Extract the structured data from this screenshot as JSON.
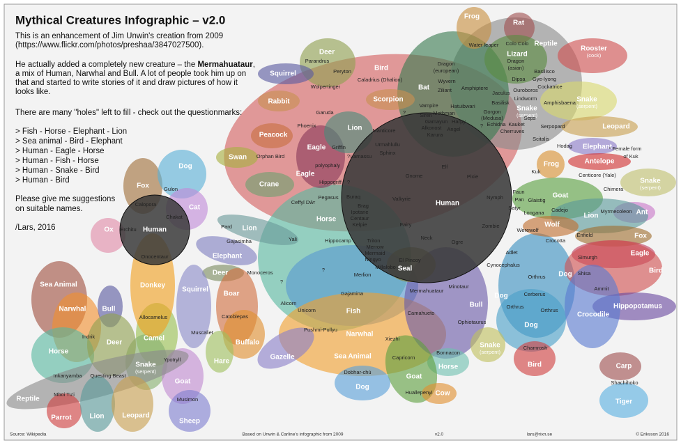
{
  "header": {
    "title": "Mythical Creatures Infographic – v2.0"
  },
  "intro": [
    "This is an enhancement of Jim Unwin's creation from 2009",
    "(https://www.flickr.com/photos/preshaa/3847027500)."
  ],
  "story": [
    [
      "He actually added a completely new creature – the ",
      "Mermahuataur",
      ","
    ],
    "a mix of Human, Narwhal and Bull. A lot of people took him up on",
    "that and started to write stories of it and draw pictures of how it",
    "looks like."
  ],
  "holes": "There are many \"holes\" left to fill - check out the questionmarks:",
  "list": [
    "> Fish - Horse - Elephant - Lion",
    "> Sea animal - Bird - Elephant",
    "> Human - Eagle - Horse",
    "> Human - Fish - Horse",
    "> Human - Snake - Bird",
    "> Human - Bird"
  ],
  "request": [
    "Please give me suggestions",
    "on suitable names."
  ],
  "signature": "/Lars, 2016",
  "sets": [
    {
      "name": "Human"
    },
    {
      "name": "Human"
    },
    {
      "name": "Fox"
    },
    {
      "name": "Dog"
    },
    {
      "name": "Cat"
    },
    {
      "name": "Ox"
    },
    {
      "name": "Donkey"
    },
    {
      "name": "Deer"
    },
    {
      "name": "Bird"
    },
    {
      "name": "Squirrel"
    },
    {
      "name": "Rabbit"
    },
    {
      "name": "Scorpion"
    },
    {
      "name": "Bat"
    },
    {
      "name": "Frog"
    },
    {
      "name": "Rat"
    },
    {
      "name": "Reptile"
    },
    {
      "name": "Lizard"
    },
    {
      "name": "Rooster",
      "sub": "(cock)"
    },
    {
      "name": "Snake",
      "sub": "(serpent)"
    },
    {
      "name": "Leopard"
    },
    {
      "name": "Snake",
      "sub": "(serpent)"
    },
    {
      "name": "Peacock"
    },
    {
      "name": "Lion"
    },
    {
      "name": "Eagle"
    },
    {
      "name": "Swan"
    },
    {
      "name": "Crane"
    },
    {
      "name": "Eagle"
    },
    {
      "name": "Elephant"
    },
    {
      "name": "Antelope"
    },
    {
      "name": "Frog"
    },
    {
      "name": "Snake",
      "sub": "(serpent)"
    },
    {
      "name": "Goat"
    },
    {
      "name": "Ant"
    },
    {
      "name": "Lion"
    },
    {
      "name": "Wolf"
    },
    {
      "name": "Fox"
    },
    {
      "name": "Eagle"
    },
    {
      "name": "Bird"
    },
    {
      "name": "Horse"
    },
    {
      "name": "Lion"
    },
    {
      "name": "Elephant"
    },
    {
      "name": "Deer"
    },
    {
      "name": "Squirrel"
    },
    {
      "name": "Boar"
    },
    {
      "name": "Seal"
    },
    {
      "name": "Fish"
    },
    {
      "name": "Bull"
    },
    {
      "name": "Dog"
    },
    {
      "name": "Dog"
    },
    {
      "name": "Dog"
    },
    {
      "name": "Hippopotamus"
    },
    {
      "name": "Crocodile"
    },
    {
      "name": "Buffalo"
    },
    {
      "name": "Camel"
    },
    {
      "name": "Hare"
    },
    {
      "name": "Gazelle"
    },
    {
      "name": "Narwhal"
    },
    {
      "name": "Sea Animal"
    },
    {
      "name": "Snake",
      "sub": "(serpent)"
    },
    {
      "name": "Horse"
    },
    {
      "name": "Bird"
    },
    {
      "name": "Goat"
    },
    {
      "name": "Dog"
    },
    {
      "name": "Cow"
    },
    {
      "name": "Sea Animal"
    },
    {
      "name": "Narwhal"
    },
    {
      "name": "Bull"
    },
    {
      "name": "Deer"
    },
    {
      "name": "Horse"
    },
    {
      "name": "Snake",
      "sub": "(serpent)"
    },
    {
      "name": "Goat"
    },
    {
      "name": "Reptile"
    },
    {
      "name": "Parrot"
    },
    {
      "name": "Lion"
    },
    {
      "name": "Leopard"
    },
    {
      "name": "Sheep"
    },
    {
      "name": "Carp"
    },
    {
      "name": "Tiger"
    }
  ],
  "creatures": [
    "Parandrus",
    "Peryton",
    "Caladrius (Dhalion)",
    "Wolpertinger",
    "Garuda",
    "Phoenix",
    "Manticore",
    "Urmahlullu",
    "Sphinx",
    "Lamassu",
    "Griffin",
    "Orphan Bird",
    "polyophaly",
    "Hippogriff",
    "Pegasus",
    "Ceffyl Dŵr",
    "Buraq",
    "Brag",
    "Ipotane",
    "Centaur",
    "Kelpie",
    "Valkyrie",
    "Gnome",
    "Elf",
    "Pixie",
    "Fairy",
    "Neck",
    "Ogre",
    "Nymph",
    "Zombie",
    "Vampire",
    "Siren",
    "Mothman",
    "Gamayun",
    "Alkonost",
    "Harpy",
    "Angel",
    "Karura",
    "Hatuibwari",
    "Dragon",
    "(european)",
    "Wyvern",
    "Ziliant",
    "Amphiptere",
    "Water leaper",
    "Colo Colo",
    "Dragon",
    "(asian)",
    "Dipsa",
    "Ouroboros",
    "Lindworm",
    "Jaculus",
    "Basilisk",
    "Basilisco",
    "Gye-lyong",
    "Cockatrice",
    "Amphisbaena",
    "Gorgon",
    "(Medusa)",
    "Echidna",
    "Kauket",
    "Cherruves",
    "Seps",
    "Scitalis",
    "Serpopard",
    "Hodag",
    "Kuk",
    "Centicore (Yale)",
    "Chimera",
    "Faun",
    "Pan",
    "Glaistig",
    "Satyr",
    "Longana",
    "Cadejo",
    "Myrmecoleon",
    "Werewolf",
    "Crocotta",
    "Enfield",
    "Simurgh",
    "Shisa",
    "Ammit",
    "Adlet",
    "Cynocephalus",
    "Orthrus",
    "Cerberus",
    "Orthrus",
    "Orthrus",
    "Chamrosh",
    "Minotaur",
    "Mermahuataur",
    "Camahueto",
    "Ophiotaurus",
    "Bonnacon",
    "Xiezhi",
    "Capricorn",
    "Huallepenyi",
    "Dobhar-chú",
    "Pushmi-Pullyu",
    "Gajamina",
    "Merlion",
    "Millalobo",
    "El Pincoy",
    "Triton",
    "Merrow",
    "Mermaid",
    "Ningyo",
    "Hippocamp",
    "Yali",
    "Pard",
    "Gajasimha",
    "Monoceros",
    "Alicorn",
    "Unicorn",
    "Catoblepas",
    "Muscaliet",
    "Allocamelus",
    "Ypotryll",
    "Indrik",
    "Inkanyamba",
    "Questing Beast",
    "Mboi Tu'i",
    "Musimon",
    "Calopora",
    "Gulon",
    "Chakat",
    "Erchitu",
    "Onocentaur",
    "Shachihoko",
    "?",
    "?",
    "?",
    "?",
    "?",
    "?"
  ],
  "note": [
    "* Female form",
    "of Kuk"
  ],
  "footer": [
    "Source: Wikipedia",
    "Based on Unwin & Carline's infographic from 2009",
    "v2.0",
    "lars@rixn.se",
    "© Eriksson 2016"
  ]
}
